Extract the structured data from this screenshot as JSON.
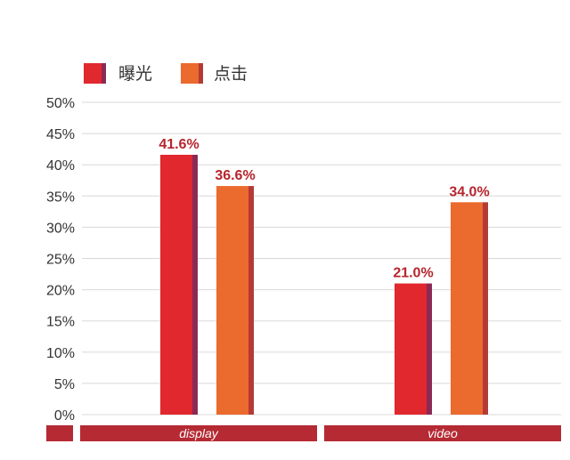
{
  "chart_data": {
    "type": "bar",
    "title": "",
    "xlabel": "",
    "ylabel": "",
    "categories": [
      "display",
      "video"
    ],
    "series": [
      {
        "name": "曝光",
        "values": [
          41.6,
          21.0
        ],
        "labels": [
          "41.6%",
          "21.0%"
        ],
        "color": "#E0282E",
        "side_color": "#8B2A55"
      },
      {
        "name": "点击",
        "values": [
          36.6,
          34.0
        ],
        "labels": [
          "36.6%",
          "34.0%"
        ],
        "color": "#EB6A2E",
        "side_color": "#B53A36"
      }
    ],
    "y_ticks": [
      "0%",
      "5%",
      "10%",
      "15%",
      "20%",
      "25%",
      "30%",
      "35%",
      "40%",
      "45%",
      "50%"
    ],
    "ylim": [
      0,
      50
    ],
    "y_unit": "%",
    "grid": true,
    "legend_position": "top-left",
    "data_label_color": "#B5252E",
    "category_band_color": "#B52A33",
    "category_text_color": "#FFFFFF"
  }
}
